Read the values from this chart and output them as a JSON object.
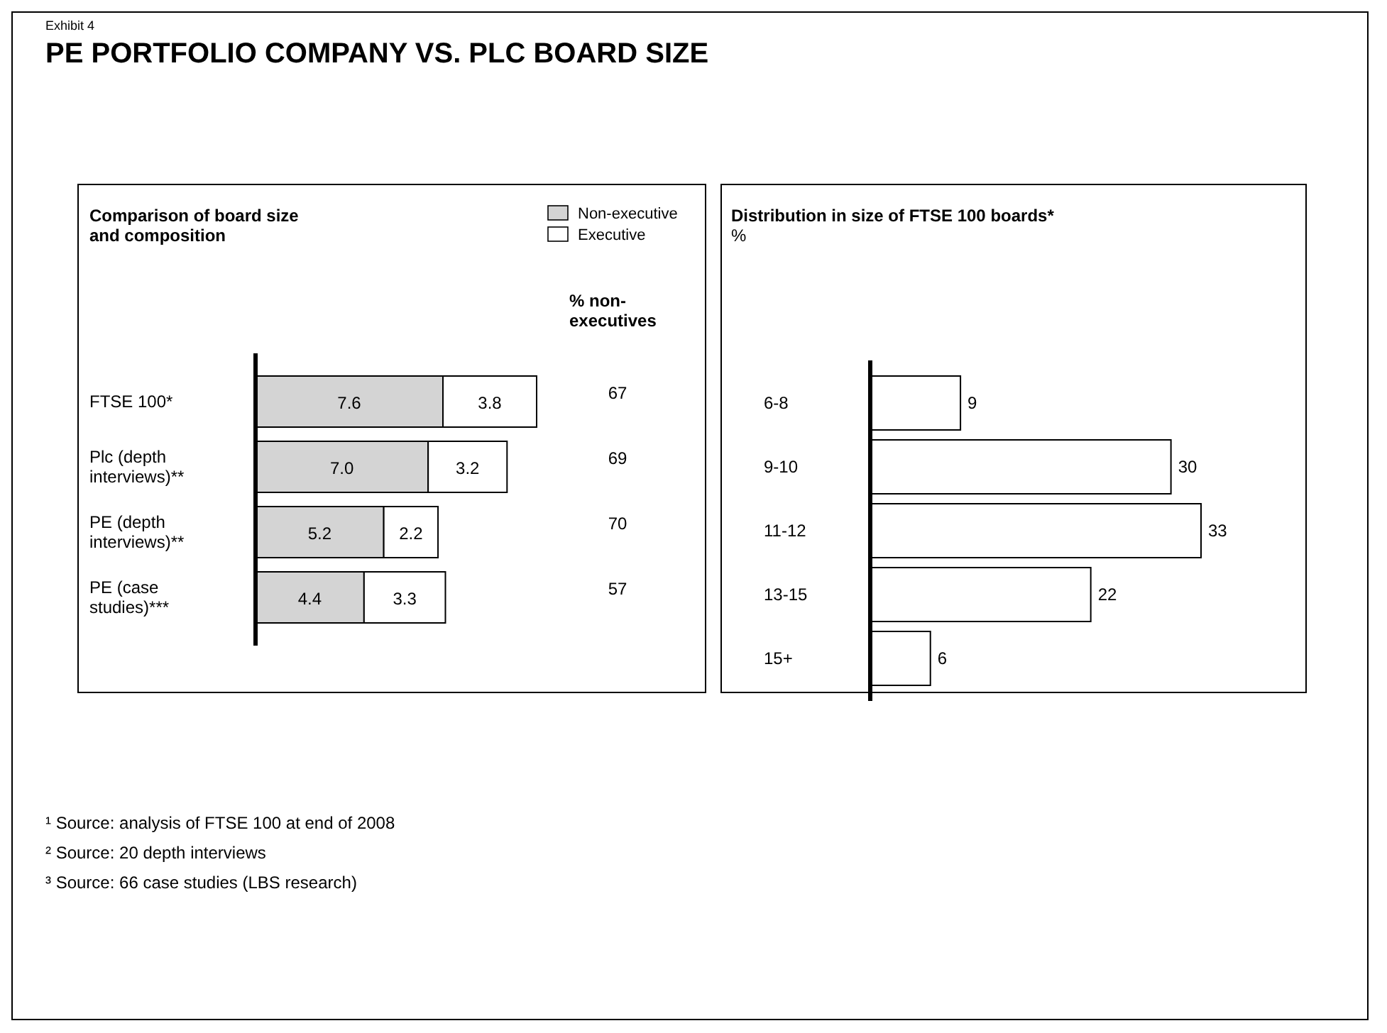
{
  "chart_data": [
    {
      "type": "bar",
      "orientation": "horizontal",
      "stacked": true,
      "title": "Comparison of board size and composition",
      "categories": [
        "FTSE 100*",
        "Plc (depth interviews)**",
        "PE (depth interviews)**",
        "PE (case studies)***"
      ],
      "series": [
        {
          "name": "Non-executive",
          "color": "#d4d4d4",
          "values": [
            7.6,
            7.0,
            5.2,
            4.4
          ],
          "value_labels": [
            "7.6",
            "7.0",
            "5.2",
            "4.4"
          ]
        },
        {
          "name": "Executive",
          "color": "#ffffff",
          "values": [
            3.8,
            3.2,
            2.2,
            3.3
          ],
          "value_labels": [
            "3.8",
            "3.2",
            "2.2",
            "3.3"
          ]
        }
      ],
      "legend": "top right",
      "annotations": [
        "Exhibit 4",
        "PE PORTFOLIO COMPANY VS. PLC BOARD SIZE",
        "% non-executives",
        "67",
        "69",
        "70",
        "57",
        "¹ Source: analysis of FTSE 100 at end of 2008",
        "² Source: 20 depth interviews",
        "³ Source: 66 case studies (LBS research)"
      ]
    },
    {
      "type": "bar",
      "orientation": "horizontal",
      "title": "Distribution in size of FTSE 100 boards*",
      "subtitle": "%",
      "categories": [
        "6-8",
        "9-10",
        "11-12",
        "13-15",
        "15+"
      ],
      "values": [
        9,
        30,
        33,
        22,
        6
      ],
      "color": "#ffffff",
      "data_labels": true
    }
  ]
}
